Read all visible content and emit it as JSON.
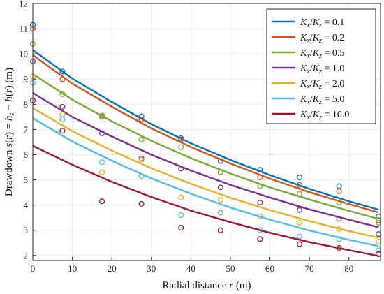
{
  "chart_data": {
    "type": "line",
    "xlabel": "Radial distance r (m)",
    "ylabel": "Drawdown s(r) = h_s − h(r) (m)",
    "xlim": [
      0,
      88
    ],
    "ylim": [
      1.8,
      12
    ],
    "xticks": [
      0,
      10,
      20,
      30,
      40,
      50,
      60,
      70,
      80
    ],
    "yticks": [
      2,
      3,
      4,
      5,
      6,
      7,
      8,
      9,
      10,
      11,
      12
    ],
    "grid": true,
    "legend_position": "top-right",
    "obs_x": [
      0,
      7.5,
      17.5,
      27.5,
      37.5,
      47.5,
      57.5,
      67.5,
      77.5,
      87.5
    ],
    "series": [
      {
        "name": "Kx/Kz = 0.1",
        "ratio": "0.1",
        "color": "#0072BD",
        "fit_x": [
          0,
          10,
          20,
          30,
          40,
          50,
          60,
          70,
          80,
          87.5
        ],
        "fit_y": [
          10.15,
          9.02,
          8.09,
          7.21,
          6.45,
          5.79,
          5.19,
          4.64,
          4.15,
          3.82
        ],
        "obs_y": [
          11.15,
          9.3,
          7.55,
          7.52,
          6.65,
          5.75,
          5.4,
          5.1,
          4.75,
          3.55
        ]
      },
      {
        "name": "Kx/Kz = 0.2",
        "ratio": "0.2",
        "color": "#D95319",
        "fit_x": [
          0,
          10,
          20,
          30,
          40,
          50,
          60,
          70,
          80,
          87.5
        ],
        "fit_y": [
          9.95,
          8.82,
          7.9,
          7.04,
          6.3,
          5.65,
          5.05,
          4.51,
          4.04,
          3.71
        ],
        "obs_y": [
          11.0,
          9.0,
          7.5,
          7.4,
          6.6,
          5.3,
          5.1,
          4.8,
          4.55,
          3.4
        ]
      },
      {
        "name": "Kx/Kz = 0.5",
        "ratio": "0.5",
        "color": "#77AC30",
        "fit_x": [
          0,
          10,
          20,
          30,
          40,
          50,
          60,
          70,
          80,
          87.5
        ],
        "fit_y": [
          9.2,
          8.18,
          7.32,
          6.55,
          5.86,
          5.25,
          4.7,
          4.22,
          3.77,
          3.45
        ],
        "obs_y": [
          10.4,
          8.4,
          7.55,
          6.6,
          6.3,
          5.3,
          4.75,
          4.45,
          4.1,
          3.3
        ]
      },
      {
        "name": "Kx/Kz = 1.0",
        "ratio": "1.0",
        "color": "#7E2F8E",
        "fit_x": [
          0,
          10,
          20,
          30,
          40,
          50,
          60,
          70,
          80,
          87.5
        ],
        "fit_y": [
          8.45,
          7.5,
          6.72,
          6.0,
          5.37,
          4.8,
          4.3,
          3.83,
          3.42,
          3.12
        ],
        "obs_y": [
          9.7,
          7.9,
          6.85,
          5.85,
          5.45,
          4.7,
          4.1,
          3.8,
          3.45,
          2.85
        ]
      },
      {
        "name": "Kx/Kz = 2.0",
        "ratio": "2.0",
        "color": "#EDB120",
        "fit_x": [
          0,
          10,
          20,
          30,
          40,
          50,
          60,
          70,
          80,
          87.5
        ],
        "fit_y": [
          7.85,
          6.93,
          6.16,
          5.46,
          4.84,
          4.29,
          3.8,
          3.36,
          2.97,
          2.7
        ],
        "obs_y": [
          9.1,
          7.6,
          5.3,
          5.8,
          4.3,
          4.2,
          3.55,
          3.3,
          3.05,
          2.55
        ]
      },
      {
        "name": "Kx/Kz = 5.0",
        "ratio": "5.0",
        "color": "#4DBEEE",
        "fit_x": [
          0,
          10,
          20,
          30,
          40,
          50,
          60,
          70,
          80,
          87.5
        ],
        "fit_y": [
          7.45,
          6.52,
          5.76,
          5.06,
          4.45,
          3.9,
          3.42,
          2.99,
          2.62,
          2.37
        ],
        "obs_y": [
          8.85,
          7.4,
          5.7,
          5.15,
          3.6,
          3.7,
          3.0,
          2.75,
          2.65,
          2.2
        ]
      },
      {
        "name": "Kx/Kz = 10.0",
        "ratio": "10.0",
        "color": "#A2142F",
        "fit_x": [
          0,
          10,
          20,
          30,
          40,
          50,
          60,
          70,
          80,
          87.5
        ],
        "fit_y": [
          6.35,
          5.6,
          4.92,
          4.32,
          3.78,
          3.32,
          2.9,
          2.53,
          2.21,
          1.98
        ],
        "obs_y": [
          8.15,
          6.95,
          4.15,
          4.05,
          3.1,
          3.0,
          2.65,
          2.45,
          2.3,
          2.05
        ]
      }
    ]
  }
}
